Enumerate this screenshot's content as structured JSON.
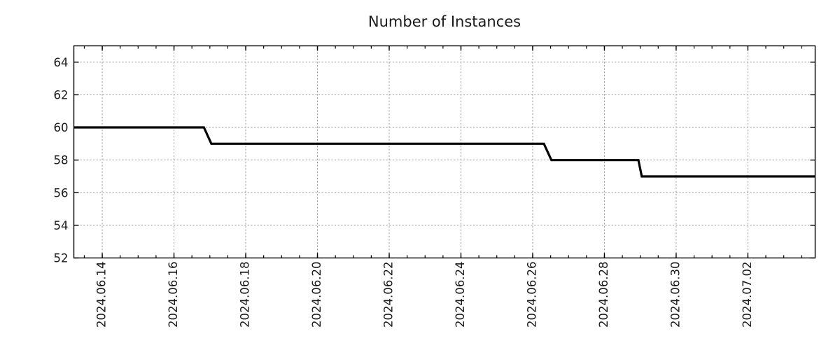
{
  "chart_data": {
    "type": "line",
    "subtype": "step",
    "title": "Number of Instances",
    "legend": "none",
    "background": "#ffffff",
    "series": [
      {
        "color": "#000000",
        "line_width": 3.2,
        "points": [
          {
            "t": "2024-06-13 05:00",
            "v": 60
          },
          {
            "t": "2024-06-16 20:00",
            "v": 60
          },
          {
            "t": "2024-06-17 01:00",
            "v": 59
          },
          {
            "t": "2024-06-26 07:30",
            "v": 59
          },
          {
            "t": "2024-06-26 12:30",
            "v": 58
          },
          {
            "t": "2024-06-28 22:45",
            "v": 58
          },
          {
            "t": "2024-06-29 01:00",
            "v": 57
          },
          {
            "t": "2024-07-03 21:00",
            "v": 57
          }
        ]
      }
    ],
    "x_axis": {
      "type": "time",
      "min": "2024-06-13 05:00",
      "max": "2024-07-03 21:00",
      "major_ticks": [
        {
          "date": "2024-06-14",
          "label": "2024.06.14"
        },
        {
          "date": "2024-06-16",
          "label": "2024.06.16"
        },
        {
          "date": "2024-06-18",
          "label": "2024.06.18"
        },
        {
          "date": "2024-06-20",
          "label": "2024.06.20"
        },
        {
          "date": "2024-06-22",
          "label": "2024.06.22"
        },
        {
          "date": "2024-06-24",
          "label": "2024.06.24"
        },
        {
          "date": "2024-06-26",
          "label": "2024.06.26"
        },
        {
          "date": "2024-06-28",
          "label": "2024.06.28"
        },
        {
          "date": "2024-06-30",
          "label": "2024.06.30"
        },
        {
          "date": "2024-07-02",
          "label": "2024.07.02"
        }
      ],
      "minor_tick_interval_hours": 12,
      "grid": true,
      "label_rotation_deg": -90
    },
    "y_axis": {
      "min": 52,
      "max": 65,
      "major_ticks": [
        52,
        54,
        56,
        58,
        60,
        62,
        64
      ],
      "grid": true
    },
    "colors": {
      "line": "#000000",
      "grid": "#949494",
      "axis": "#000000",
      "text": "#1a1a1a",
      "background": "#ffffff"
    }
  }
}
